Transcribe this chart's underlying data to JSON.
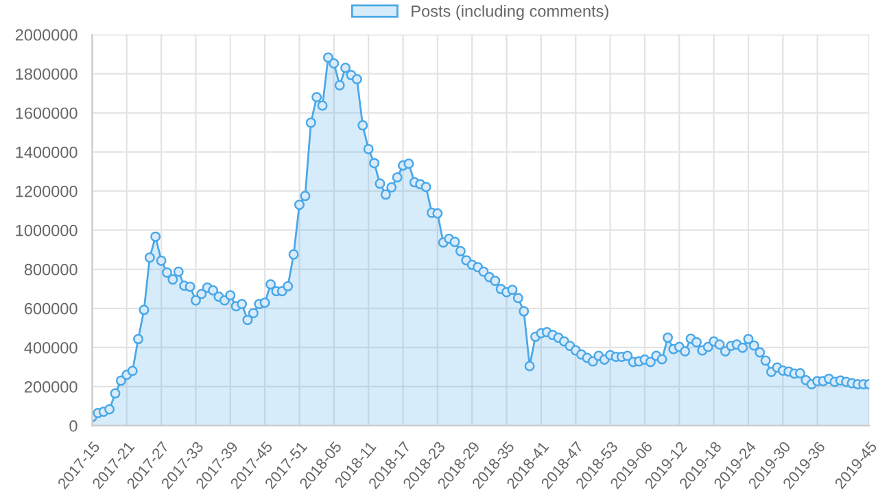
{
  "chart_data": {
    "type": "area",
    "categories": [
      "2017-15",
      null,
      null,
      null,
      null,
      null,
      "2017-21",
      null,
      null,
      null,
      null,
      null,
      "2017-27",
      null,
      null,
      null,
      null,
      null,
      "2017-33",
      null,
      null,
      null,
      null,
      null,
      "2017-39",
      null,
      null,
      null,
      null,
      null,
      "2017-45",
      null,
      null,
      null,
      null,
      null,
      "2017-51",
      null,
      null,
      null,
      null,
      null,
      "2018-05",
      null,
      null,
      null,
      null,
      null,
      "2018-11",
      null,
      null,
      null,
      null,
      null,
      "2018-17",
      null,
      null,
      null,
      null,
      null,
      "2018-23",
      null,
      null,
      null,
      null,
      null,
      "2018-29",
      null,
      null,
      null,
      null,
      null,
      "2018-35",
      null,
      null,
      null,
      null,
      null,
      "2018-41",
      null,
      null,
      null,
      null,
      null,
      "2018-47",
      null,
      null,
      null,
      null,
      null,
      "2018-53",
      null,
      null,
      null,
      null,
      null,
      "2019-06",
      null,
      null,
      null,
      null,
      null,
      "2019-12",
      null,
      null,
      null,
      null,
      null,
      "2019-18",
      null,
      null,
      null,
      null,
      null,
      "2019-24",
      null,
      null,
      null,
      null,
      null,
      "2019-30",
      null,
      null,
      null,
      null,
      null,
      "2019-36",
      null,
      null,
      null,
      null,
      null,
      null,
      null,
      null,
      "2019-45"
    ],
    "series": [
      {
        "name": "Posts (including comments)",
        "color": "#4aa8e8",
        "values": [
          45000,
          65000,
          72000,
          84000,
          165000,
          230000,
          260000,
          280000,
          443000,
          592000,
          860000,
          967000,
          844000,
          783000,
          748000,
          788000,
          716000,
          711000,
          641000,
          674000,
          706000,
          692000,
          660000,
          641000,
          667000,
          611000,
          622000,
          541000,
          576000,
          622000,
          629000,
          723000,
          688000,
          688000,
          713000,
          876000,
          1130000,
          1175000,
          1550000,
          1680000,
          1637000,
          1883000,
          1853000,
          1741000,
          1830000,
          1793000,
          1772000,
          1536000,
          1415000,
          1343000,
          1238000,
          1182000,
          1219000,
          1270000,
          1331000,
          1340000,
          1245000,
          1235000,
          1221000,
          1089000,
          1086000,
          937000,
          956000,
          940000,
          893000,
          846000,
          823000,
          811000,
          788000,
          760000,
          741000,
          699000,
          683000,
          695000,
          653000,
          585000,
          305000,
          455000,
          473000,
          478000,
          464000,
          450000,
          431000,
          408000,
          385000,
          364000,
          347000,
          329000,
          357000,
          338000,
          361000,
          352000,
          352000,
          357000,
          326000,
          329000,
          338000,
          326000,
          357000,
          340000,
          450000,
          392000,
          403000,
          380000,
          445000,
          427000,
          385000,
          403000,
          431000,
          415000,
          380000,
          408000,
          415000,
          399000,
          443000,
          410000,
          375000,
          333000,
          275000,
          298000,
          282000,
          277000,
          266000,
          268000,
          233000,
          212000,
          228000,
          228000,
          240000,
          224000,
          231000,
          224000,
          217000,
          212000,
          212000,
          212000
        ]
      }
    ],
    "ylim": [
      0,
      2000000
    ],
    "yticks": [
      0,
      200000,
      400000,
      600000,
      800000,
      1000000,
      1200000,
      1400000,
      1600000,
      1800000,
      2000000
    ],
    "grid": true,
    "legend": "top",
    "marker": "circle",
    "line_style": "solid"
  }
}
